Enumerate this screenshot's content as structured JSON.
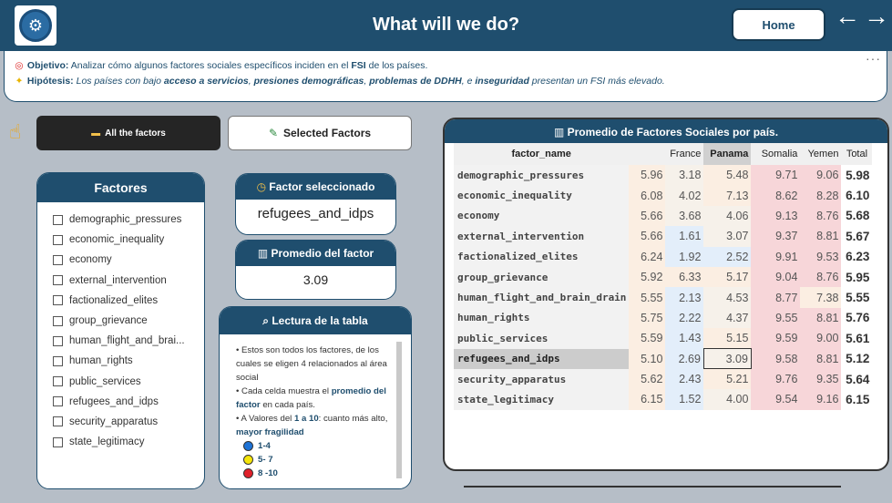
{
  "header": {
    "title": "What will we do?",
    "home_label": "Home",
    "back_arrow": "←",
    "forward_arrow": "→"
  },
  "objective": {
    "obj_label": "Objetivo:",
    "obj_text1": " Analizar cómo algunos factores sociales específicos inciden en el ",
    "obj_fsi": "FSI",
    "obj_text2": " de los países.",
    "hip_label": "Hipótesis:",
    "hip_text1": " Los países con bajo ",
    "hip_b1": "acceso a servicios",
    "hip_sep1": ", ",
    "hip_b2": "presiones demográficas",
    "hip_sep2": ", ",
    "hip_b3": "problemas de DDHH",
    "hip_sep3": ", e ",
    "hip_b4": "inseguridad",
    "hip_text2": " presentan un FSI más elevado."
  },
  "tabs": {
    "all_label": "All the factors",
    "selected_label": "Selected Factors"
  },
  "factores": {
    "title": "Factores",
    "items": [
      "demographic_pressures",
      "economic_inequality",
      "economy",
      "external_intervention",
      "factionalized_elites",
      "group_grievance",
      "human_flight_and_brai...",
      "human_rights",
      "public_services",
      "refugees_and_idps",
      "security_apparatus",
      "state_legitimacy"
    ]
  },
  "factor_seleccionado": {
    "title": "Factor seleccionado",
    "value": "refugees_and_idps"
  },
  "promedio": {
    "title": "Promedio del factor",
    "value": "3.09"
  },
  "lectura": {
    "title": "Lectura de la tabla",
    "p1": "• Estos son todos los factores, de los cuales se eligen 4 relacionados al área social",
    "p2a": "• Cada celda muestra el ",
    "p2b": "promedio del factor",
    "p2c": " en cada país.",
    "p3a": "• A Valores del ",
    "p3b": "1 a 10",
    "p3c": ": cuanto más alto, ",
    "p3d": "mayor fragilidad",
    "legend": [
      {
        "label": "1-4",
        "color": "#1e73d6"
      },
      {
        "label": "5- 7",
        "color": "#f5e50a"
      },
      {
        "label": "8 -10",
        "color": "#e0202a"
      }
    ]
  },
  "table": {
    "title": "Promedio de Factores Sociales por país.",
    "columns": [
      "factor_name",
      "",
      "France",
      "Panama",
      "Somalia",
      "Yemen",
      "Total"
    ],
    "rows": [
      {
        "name": "demographic_pressures",
        "c1": "5.96",
        "france": "3.18",
        "panama": "5.48",
        "somalia": "9.71",
        "yemen": "9.06",
        "total": "5.98"
      },
      {
        "name": "economic_inequality",
        "c1": "6.08",
        "france": "4.02",
        "panama": "7.13",
        "somalia": "8.62",
        "yemen": "8.28",
        "total": "6.10"
      },
      {
        "name": "economy",
        "c1": "5.66",
        "france": "3.68",
        "panama": "4.06",
        "somalia": "9.13",
        "yemen": "8.76",
        "total": "5.68"
      },
      {
        "name": "external_intervention",
        "c1": "5.66",
        "france": "1.61",
        "panama": "3.07",
        "somalia": "9.37",
        "yemen": "8.81",
        "total": "5.67"
      },
      {
        "name": "factionalized_elites",
        "c1": "6.24",
        "france": "1.92",
        "panama": "2.52",
        "somalia": "9.91",
        "yemen": "9.53",
        "total": "6.23"
      },
      {
        "name": "group_grievance",
        "c1": "5.92",
        "france": "6.33",
        "panama": "5.17",
        "somalia": "9.04",
        "yemen": "8.76",
        "total": "5.95"
      },
      {
        "name": "human_flight_and_brain_drain",
        "c1": "5.55",
        "france": "2.13",
        "panama": "4.53",
        "somalia": "8.77",
        "yemen": "7.38",
        "total": "5.55"
      },
      {
        "name": "human_rights",
        "c1": "5.75",
        "france": "2.22",
        "panama": "4.37",
        "somalia": "9.55",
        "yemen": "8.81",
        "total": "5.76"
      },
      {
        "name": "public_services",
        "c1": "5.59",
        "france": "1.43",
        "panama": "5.15",
        "somalia": "9.59",
        "yemen": "9.00",
        "total": "5.61"
      },
      {
        "name": "refugees_and_idps",
        "c1": "5.10",
        "france": "2.69",
        "panama": "3.09",
        "somalia": "9.58",
        "yemen": "8.81",
        "total": "5.12"
      },
      {
        "name": "security_apparatus",
        "c1": "5.62",
        "france": "2.43",
        "panama": "5.21",
        "somalia": "9.76",
        "yemen": "9.35",
        "total": "5.64"
      },
      {
        "name": "state_legitimacy",
        "c1": "6.15",
        "france": "1.52",
        "panama": "4.00",
        "somalia": "9.54",
        "yemen": "9.16",
        "total": "6.15"
      }
    ],
    "selected_row": "refugees_and_idps"
  }
}
